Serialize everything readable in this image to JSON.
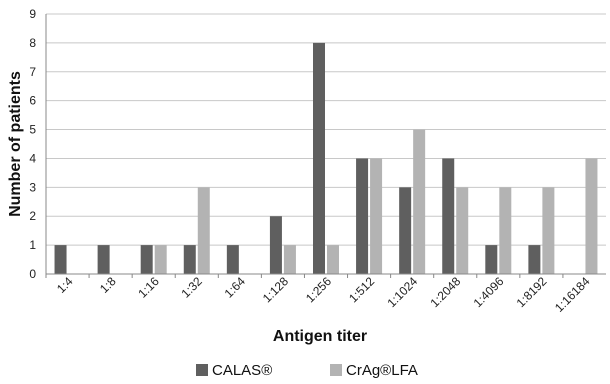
{
  "chart_data": {
    "type": "bar",
    "title": "",
    "xlabel": "Antigen titer",
    "ylabel": "Number of patients",
    "ylim": [
      0,
      9
    ],
    "yticks": [
      0,
      1,
      2,
      3,
      4,
      5,
      6,
      7,
      8,
      9
    ],
    "grid": true,
    "legend_position": "bottom",
    "categories": [
      "1:4",
      "1:8",
      "1:16",
      "1:32",
      "1:64",
      "1:128",
      "1:256",
      "1:512",
      "1:1024",
      "1:2048",
      "1:4096",
      "1:8192",
      "1:16184"
    ],
    "series": [
      {
        "name": "CALAS®",
        "color": "#5f5f5f",
        "values": [
          1,
          1,
          1,
          1,
          1,
          2,
          8,
          4,
          3,
          4,
          1,
          1,
          0
        ]
      },
      {
        "name": "CrAg®LFA",
        "color": "#b3b3b3",
        "values": [
          0,
          0,
          1,
          3,
          0,
          1,
          1,
          4,
          5,
          3,
          3,
          3,
          4
        ]
      }
    ]
  }
}
